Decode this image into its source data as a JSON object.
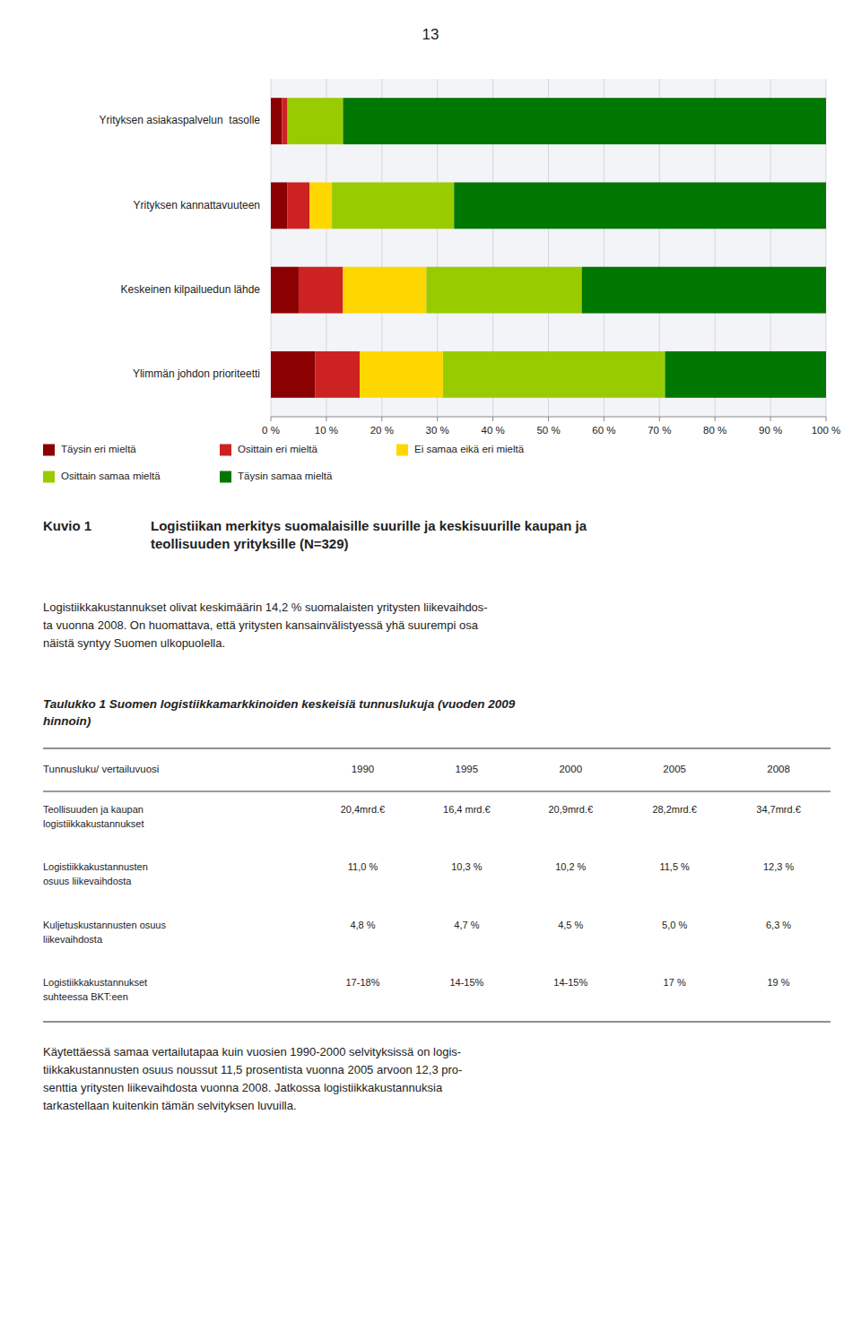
{
  "page_number": "13",
  "figure_label": "Kuvio 1",
  "chart_data": {
    "type": "bar",
    "orientation": "horizontal",
    "stacked": true,
    "title": "Logistiikan merkitys suomalaisille suurille ja keskisuurille kaupan ja\nteollisuuden yrityksille (N=329)",
    "categories": [
      "Yrityksen asiakaspalvelun  tasolle",
      "Yrityksen kannattavuuteen",
      "Keskeinen kilpailuedun lähde",
      "Ylimmän johdon prioriteetti"
    ],
    "series": [
      {
        "name": "Täysin eri mieltä",
        "color": "#8B0000",
        "values": [
          2,
          3,
          5,
          8
        ]
      },
      {
        "name": "Osittain eri mieltä",
        "color": "#CC2222",
        "values": [
          1,
          4,
          8,
          8
        ]
      },
      {
        "name": "Ei samaa eikä eri mieltä",
        "color": "#FFD700",
        "values": [
          0,
          4,
          15,
          15
        ]
      },
      {
        "name": "Osittain samaa mieltä",
        "color": "#99CC00",
        "values": [
          10,
          22,
          28,
          40
        ]
      },
      {
        "name": "Täysin samaa mieltä",
        "color": "#007700",
        "values": [
          87,
          67,
          44,
          29
        ]
      }
    ],
    "xlim": [
      0,
      100
    ],
    "xticks": [
      {
        "value": 0,
        "label": "0 %"
      },
      {
        "value": 10,
        "label": "10 %"
      },
      {
        "value": 20,
        "label": "20 %"
      },
      {
        "value": 30,
        "label": "30 %"
      },
      {
        "value": 40,
        "label": "40 %"
      },
      {
        "value": 50,
        "label": "50 %"
      },
      {
        "value": 60,
        "label": "60 %"
      },
      {
        "value": 70,
        "label": "70 %"
      },
      {
        "value": 80,
        "label": "80 %"
      },
      {
        "value": 90,
        "label": "90 %"
      },
      {
        "value": 100,
        "label": "100 %"
      }
    ],
    "grid": true,
    "legend": "bottom"
  },
  "body_text": "Logistiikkakustannukset olivat keskimäärin 14,2 % suomalaisten yritysten liikevaihdos-\nta vuonna 2008. On huomattava, että yritysten kansainvälistyessä yhä suurempi osa\nnäistä syntyy Suomen ulkopuolella.",
  "table": {
    "title": "Taulukko 1 Suomen logistiikkamarkkinoiden keskeisiä tunnuslukuja (vuoden 2009\nhinnoin)",
    "headers": [
      "Tunnusluku/ vertailuvuosi",
      "1990",
      "1995",
      "2000",
      "2005",
      "2008"
    ],
    "rows": [
      [
        "Teollisuuden ja kaupan\nlogistiikkakustannukset",
        "20,4mrd.€",
        "16,4 mrd.€",
        "20,9mrd.€",
        "28,2mrd.€",
        "34,7mrd.€"
      ],
      [
        "Logistiikkakustannusten\nosuus liikevaihdosta",
        "11,0 %",
        "10,3 %",
        "10,2 %",
        "11,5 %",
        "12,3 %"
      ],
      [
        "Kuljetuskustannusten osuus\nliikevaihdosta",
        "4,8 %",
        "4,7 %",
        "4,5 %",
        "5,0 %",
        "6,3 %"
      ],
      [
        "Logistiikkakustannukset\nsuhteessa BKT:een",
        "17-18%",
        "14-15%",
        "14-15%",
        "17 %",
        "19 %"
      ]
    ]
  },
  "footer_text": "Käytettäessä samaa vertailutapaa kuin vuosien 1990-2000 selvityksissä on logis-\ntiikkakustannusten osuus noussut 11,5 prosentista vuonna 2005 arvoon 12,3 pro-\nsenttia yritysten liikevaihdosta vuonna 2008. Jatkossa logistiikkakustannuksia\ntarkastellaan kuitenkin tämän selvityksen luvuilla."
}
